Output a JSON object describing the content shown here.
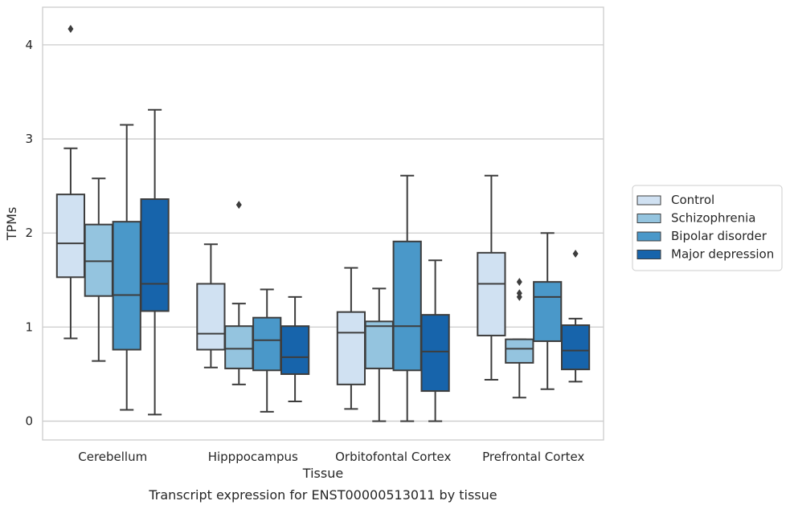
{
  "chart_data": {
    "type": "box",
    "title": "",
    "caption": "Transcript expression for ENST00000513011 by tissue",
    "xlabel": "Tissue",
    "ylabel": "TPMs",
    "ylim": [
      -0.2,
      4.4
    ],
    "yticks": [
      0,
      1,
      2,
      3,
      4
    ],
    "grid": "horizontal",
    "legend_position": "right",
    "categories": [
      "Cerebellum",
      "Hipppocampus",
      "Orbitofontal Cortex",
      "Prefrontal Cortex"
    ],
    "series": [
      {
        "name": "Control",
        "color": "#d0e1f2",
        "boxes": [
          {
            "whislo": 0.88,
            "q1": 1.53,
            "med": 1.89,
            "q3": 2.41,
            "whishi": 2.9,
            "fliers": [
              4.17
            ]
          },
          {
            "whislo": 0.57,
            "q1": 0.76,
            "med": 0.93,
            "q3": 1.46,
            "whishi": 1.88,
            "fliers": []
          },
          {
            "whislo": 0.13,
            "q1": 0.39,
            "med": 0.94,
            "q3": 1.16,
            "whishi": 1.63,
            "fliers": []
          },
          {
            "whislo": 0.44,
            "q1": 0.91,
            "med": 1.46,
            "q3": 1.79,
            "whishi": 2.61,
            "fliers": []
          }
        ]
      },
      {
        "name": "Schizophrenia",
        "color": "#94c4df",
        "boxes": [
          {
            "whislo": 0.64,
            "q1": 1.33,
            "med": 1.7,
            "q3": 2.09,
            "whishi": 2.58,
            "fliers": []
          },
          {
            "whislo": 0.39,
            "q1": 0.56,
            "med": 0.77,
            "q3": 1.01,
            "whishi": 1.25,
            "fliers": [
              2.3
            ]
          },
          {
            "whislo": 0.0,
            "q1": 0.56,
            "med": 1.01,
            "q3": 1.06,
            "whishi": 1.41,
            "fliers": []
          },
          {
            "whislo": 0.25,
            "q1": 0.62,
            "med": 0.77,
            "q3": 0.87,
            "whishi": 0.87,
            "fliers": [
              1.32,
              1.36,
              1.48
            ]
          }
        ]
      },
      {
        "name": "Bipolar disorder",
        "color": "#4a98c9",
        "boxes": [
          {
            "whislo": 0.12,
            "q1": 0.76,
            "med": 1.34,
            "q3": 2.12,
            "whishi": 3.15,
            "fliers": []
          },
          {
            "whislo": 0.1,
            "q1": 0.54,
            "med": 0.86,
            "q3": 1.1,
            "whishi": 1.4,
            "fliers": []
          },
          {
            "whislo": 0.0,
            "q1": 0.54,
            "med": 1.01,
            "q3": 1.91,
            "whishi": 2.61,
            "fliers": []
          },
          {
            "whislo": 0.34,
            "q1": 0.85,
            "med": 1.32,
            "q3": 1.48,
            "whishi": 2.0,
            "fliers": []
          }
        ]
      },
      {
        "name": "Major depression",
        "color": "#1764ab",
        "boxes": [
          {
            "whislo": 0.07,
            "q1": 1.17,
            "med": 1.46,
            "q3": 2.36,
            "whishi": 3.31,
            "fliers": []
          },
          {
            "whislo": 0.21,
            "q1": 0.5,
            "med": 0.68,
            "q3": 1.01,
            "whishi": 1.32,
            "fliers": []
          },
          {
            "whislo": 0.0,
            "q1": 0.32,
            "med": 0.74,
            "q3": 1.13,
            "whishi": 1.71,
            "fliers": []
          },
          {
            "whislo": 0.42,
            "q1": 0.55,
            "med": 0.75,
            "q3": 1.02,
            "whishi": 1.09,
            "fliers": [
              1.78
            ]
          }
        ]
      }
    ]
  }
}
